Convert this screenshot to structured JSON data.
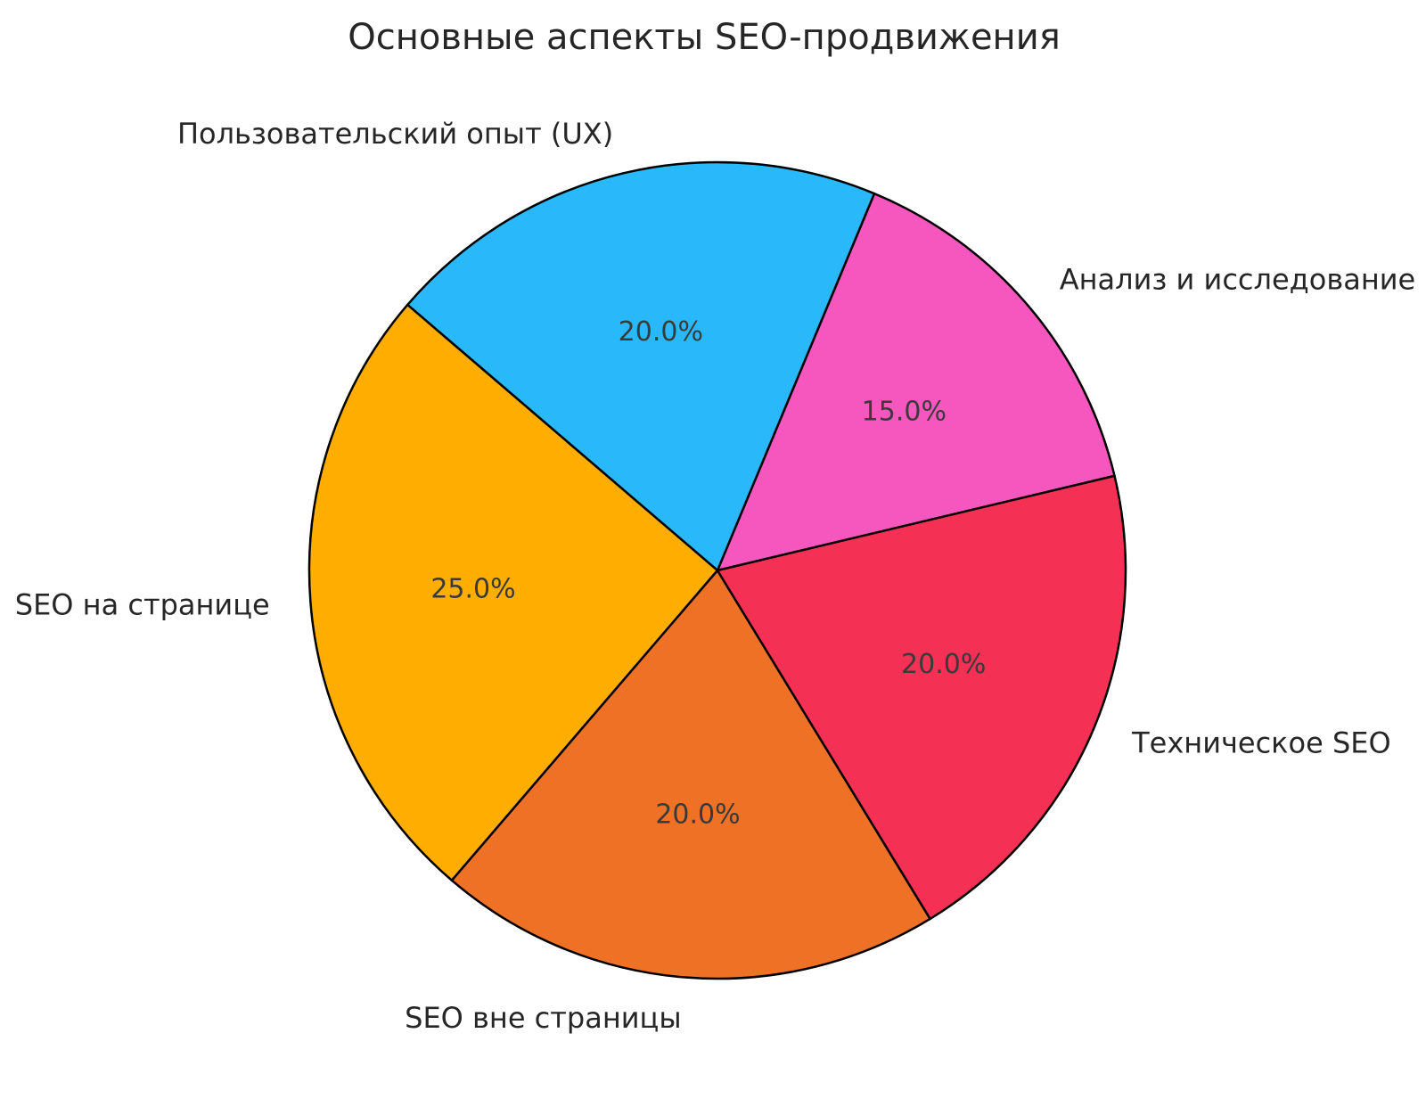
{
  "title": "Основные аспекты SEO-продвижения",
  "chart_data": {
    "type": "pie",
    "title": "Основные аспекты SEO-продвижения",
    "categories": [
      "Анализ и исследование",
      "Пользовательский опыт (UX)",
      "SEO на странице",
      "SEO вне страницы",
      "Техническое SEO"
    ],
    "values": [
      15.0,
      20.0,
      25.0,
      20.0,
      20.0
    ],
    "percent_labels": [
      "15.0%",
      "20.0%",
      "25.0%",
      "20.0%",
      "20.0%"
    ],
    "colors": [
      "#F657BE",
      "#29B9FA",
      "#FFAE00",
      "#EE7125",
      "#F43155"
    ],
    "edge_color": "#000000",
    "start_angle_deg": 13.4,
    "direction": "counterclockwise",
    "label_color": "#262626",
    "percent_label_color": "#3a3a3a",
    "background": "#ffffff",
    "legend": "none"
  }
}
